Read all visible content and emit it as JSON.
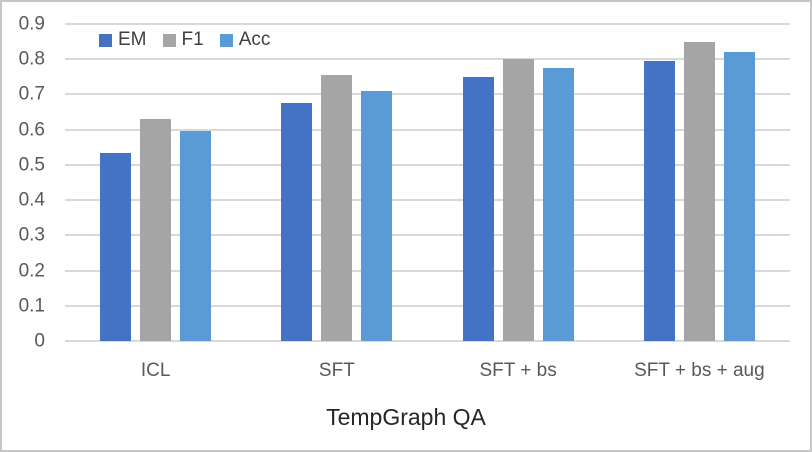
{
  "chart_data": {
    "type": "bar",
    "title": "TempGraph QA",
    "title_position": "bottom",
    "categories": [
      "ICL",
      "SFT",
      "SFT + bs",
      "SFT + bs + aug"
    ],
    "series": [
      {
        "name": "EM",
        "color": "#4472C4",
        "values": [
          0.535,
          0.675,
          0.75,
          0.795
        ]
      },
      {
        "name": "F1",
        "color": "#A5A5A5",
        "values": [
          0.63,
          0.755,
          0.8,
          0.85
        ]
      },
      {
        "name": "Acc",
        "color": "#5B9BD5",
        "values": [
          0.595,
          0.71,
          0.775,
          0.82
        ]
      }
    ],
    "ylim": [
      0,
      0.9
    ],
    "ytick_step": 0.1,
    "yticks": [
      "0",
      "0.1",
      "0.2",
      "0.3",
      "0.4",
      "0.5",
      "0.6",
      "0.7",
      "0.8",
      "0.9"
    ],
    "grid": true,
    "legend_position": "top-left",
    "colors": {
      "gridline": "#D9D9D9",
      "tick_text": "#595959",
      "legend_text": "#404040",
      "title_text": "#262626",
      "border": "#C6C6C6"
    }
  }
}
